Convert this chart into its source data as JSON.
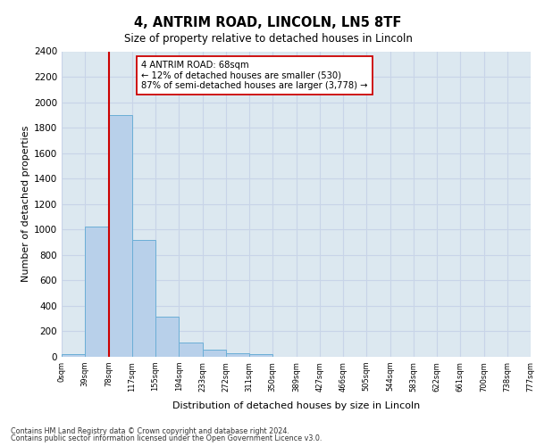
{
  "title1": "4, ANTRIM ROAD, LINCOLN, LN5 8TF",
  "title2": "Size of property relative to detached houses in Lincoln",
  "xlabel": "Distribution of detached houses by size in Lincoln",
  "ylabel": "Number of detached properties",
  "footer1": "Contains HM Land Registry data © Crown copyright and database right 2024.",
  "footer2": "Contains public sector information licensed under the Open Government Licence v3.0.",
  "bin_labels": [
    "0sqm",
    "39sqm",
    "78sqm",
    "117sqm",
    "155sqm",
    "194sqm",
    "233sqm",
    "272sqm",
    "311sqm",
    "350sqm",
    "389sqm",
    "427sqm",
    "466sqm",
    "505sqm",
    "544sqm",
    "583sqm",
    "622sqm",
    "661sqm",
    "700sqm",
    "738sqm",
    "777sqm"
  ],
  "bar_values": [
    20,
    1020,
    1900,
    920,
    315,
    110,
    55,
    30,
    20,
    0,
    0,
    0,
    0,
    0,
    0,
    0,
    0,
    0,
    0,
    0
  ],
  "bar_color": "#b8d0ea",
  "bar_edge_color": "#6baed6",
  "property_line_x": 2,
  "property_line_color": "#cc0000",
  "annotation_line1": "4 ANTRIM ROAD: 68sqm",
  "annotation_line2": "← 12% of detached houses are smaller (530)",
  "annotation_line3": "87% of semi-detached houses are larger (3,778) →",
  "annotation_box_color": "#ffffff",
  "annotation_box_edge": "#cc0000",
  "ylim": [
    0,
    2400
  ],
  "yticks": [
    0,
    200,
    400,
    600,
    800,
    1000,
    1200,
    1400,
    1600,
    1800,
    2000,
    2200,
    2400
  ],
  "grid_color": "#c8d4e8",
  "plot_bg_color": "#dce8f0",
  "fig_bg_color": "#ffffff"
}
